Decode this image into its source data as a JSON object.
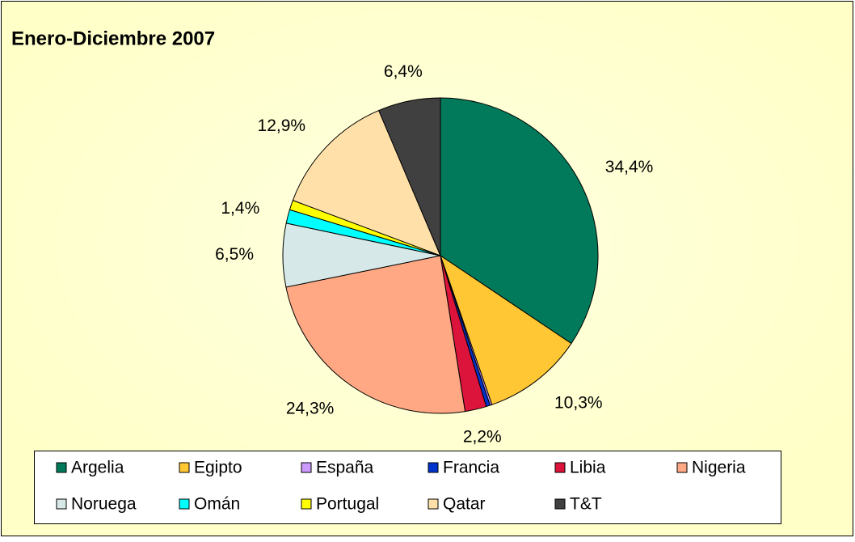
{
  "chart_data": {
    "type": "pie",
    "title": "Enero-Diciembre 2007",
    "categories": [
      "Argelia",
      "Egipto",
      "España",
      "Francia",
      "Libia",
      "Nigeria",
      "Noruega",
      "Omán",
      "Portugal",
      "Qatar",
      "T&T"
    ],
    "values": [
      34.4,
      10.3,
      0.2,
      0.4,
      2.2,
      24.3,
      6.5,
      1.4,
      1.0,
      12.9,
      6.4
    ],
    "value_labels": [
      "34,4%",
      "10,3%",
      null,
      null,
      "2,2%",
      "24,3%",
      "6,5%",
      "1,4%",
      null,
      "12,9%",
      "6,4%"
    ],
    "colors": [
      "#007a5a",
      "#ffc733",
      "#cc99ff",
      "#0033cc",
      "#dc143c",
      "#ffa883",
      "#d6e8e8",
      "#00ffff",
      "#ffff00",
      "#ffe0a8",
      "#404040"
    ]
  }
}
